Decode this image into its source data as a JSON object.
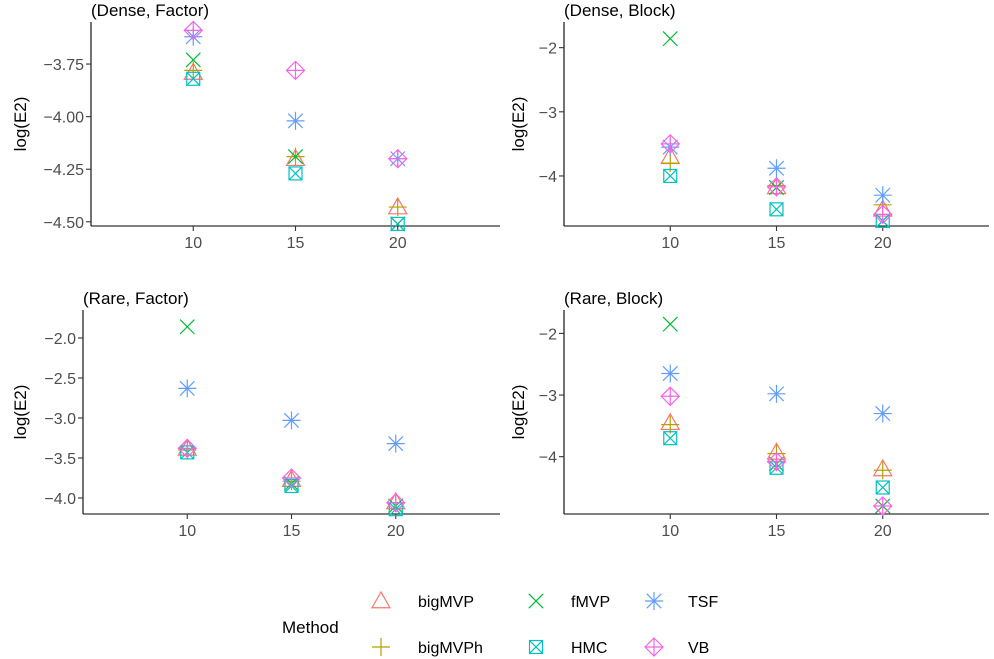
{
  "colors": {
    "bigMVP": "#F8766D",
    "bigMVPh": "#B79F00",
    "fMVP": "#00BA38",
    "HMC": "#00BFC4",
    "TSF": "#619CFF",
    "VB": "#F564E3"
  },
  "legend": {
    "title": "Method",
    "placement": "bottom",
    "entries": [
      {
        "name": "bigMVP",
        "shape": "triangle-open-icon"
      },
      {
        "name": "bigMVPh",
        "shape": "plus-icon"
      },
      {
        "name": "fMVP",
        "shape": "cross-icon"
      },
      {
        "name": "HMC",
        "shape": "square-cross-icon"
      },
      {
        "name": "TSF",
        "shape": "asterisk-icon"
      },
      {
        "name": "VB",
        "shape": "diamond-plus-icon"
      }
    ]
  },
  "chart_data": [
    {
      "type": "scatter",
      "title": "(Dense, Factor)",
      "ylabel": "log(E2)",
      "xlabel": "",
      "categories": [
        "10",
        "15",
        "20"
      ],
      "y_ticks": [
        -3.75,
        -4.0,
        -4.25,
        -4.5
      ],
      "y_tick_labels": [
        "−3.75",
        "−4.00",
        "−4.25",
        "−4.50"
      ],
      "ylim": [
        -4.52,
        -3.55
      ],
      "grid": false,
      "series": [
        {
          "name": "bigMVP",
          "values": [
            -3.79,
            -4.2,
            -4.43
          ]
        },
        {
          "name": "bigMVPh",
          "values": [
            -3.78,
            -4.19,
            -4.43
          ]
        },
        {
          "name": "fMVP",
          "values": [
            -3.73,
            -4.19,
            -4.51
          ]
        },
        {
          "name": "HMC",
          "values": [
            -3.82,
            -4.27,
            -4.51
          ]
        },
        {
          "name": "TSF",
          "values": [
            -3.62,
            -4.02,
            -4.2
          ]
        },
        {
          "name": "VB",
          "values": [
            -3.59,
            -3.78,
            -4.2
          ]
        }
      ]
    },
    {
      "type": "scatter",
      "title": "(Dense, Block)",
      "ylabel": "log(E2)",
      "xlabel": "",
      "categories": [
        "10",
        "15",
        "20"
      ],
      "y_ticks": [
        -2,
        -3,
        -4
      ],
      "y_tick_labels": [
        "−2",
        "−3",
        "−4"
      ],
      "ylim": [
        -4.78,
        -1.6
      ],
      "grid": false,
      "series": [
        {
          "name": "bigMVP",
          "values": [
            -3.7,
            -4.17,
            -4.52
          ]
        },
        {
          "name": "bigMVPh",
          "values": [
            -3.8,
            -4.15,
            -4.45
          ]
        },
        {
          "name": "fMVP",
          "values": [
            -1.86,
            -4.18,
            -4.7
          ]
        },
        {
          "name": "HMC",
          "values": [
            -4.0,
            -4.52,
            -4.7
          ]
        },
        {
          "name": "TSF",
          "values": [
            -3.55,
            -3.88,
            -4.3
          ]
        },
        {
          "name": "VB",
          "values": [
            -3.5,
            -4.17,
            -4.6
          ]
        }
      ]
    },
    {
      "type": "scatter",
      "title": "(Rare, Factor)",
      "ylabel": "log(E2)",
      "xlabel": "",
      "categories": [
        "10",
        "15",
        "20"
      ],
      "y_ticks": [
        -2.0,
        -2.5,
        -3.0,
        -3.5,
        -4.0
      ],
      "y_tick_labels": [
        "−2.0",
        "−2.5",
        "−3.0",
        "−3.5",
        "−4.0"
      ],
      "ylim": [
        -4.2,
        -1.65
      ],
      "grid": false,
      "series": [
        {
          "name": "bigMVP",
          "values": [
            -3.38,
            -3.77,
            -4.05
          ]
        },
        {
          "name": "bigMVPh",
          "values": [
            -3.4,
            -3.79,
            -4.06
          ]
        },
        {
          "name": "fMVP",
          "values": [
            -1.86,
            -3.82,
            -4.1
          ]
        },
        {
          "name": "HMC",
          "values": [
            -3.43,
            -3.85,
            -4.14
          ]
        },
        {
          "name": "TSF",
          "values": [
            -2.63,
            -3.03,
            -3.32
          ]
        },
        {
          "name": "VB",
          "values": [
            -3.38,
            -3.75,
            -4.06
          ]
        }
      ]
    },
    {
      "type": "scatter",
      "title": "(Rare, Block)",
      "ylabel": "log(E2)",
      "xlabel": "",
      "categories": [
        "10",
        "15",
        "20"
      ],
      "y_ticks": [
        -2,
        -3,
        -4
      ],
      "y_tick_labels": [
        "−2",
        "−3",
        "−4"
      ],
      "ylim": [
        -4.93,
        -1.62
      ],
      "grid": false,
      "series": [
        {
          "name": "bigMVP",
          "values": [
            -3.45,
            -3.93,
            -4.2
          ]
        },
        {
          "name": "bigMVPh",
          "values": [
            -3.48,
            -3.95,
            -4.22
          ]
        },
        {
          "name": "fMVP",
          "values": [
            -1.85,
            -4.12,
            -4.8
          ]
        },
        {
          "name": "HMC",
          "values": [
            -3.7,
            -4.18,
            -4.5
          ]
        },
        {
          "name": "TSF",
          "values": [
            -2.65,
            -2.98,
            -3.3
          ]
        },
        {
          "name": "VB",
          "values": [
            -3.02,
            -4.08,
            -4.8
          ]
        }
      ]
    }
  ]
}
